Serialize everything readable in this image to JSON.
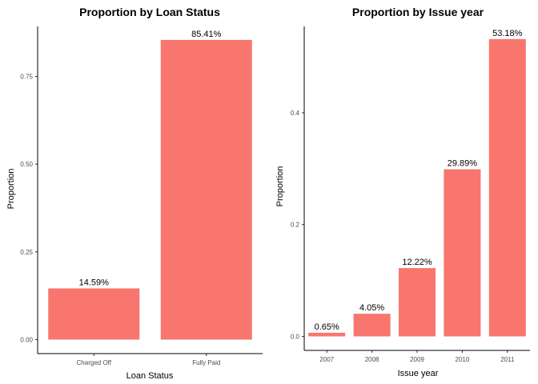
{
  "chart_data": [
    {
      "type": "bar",
      "title": "Proportion by Loan Status",
      "xlabel": "Loan Status",
      "ylabel": "Proportion",
      "categories": [
        "Charged Off",
        "Fully Paid"
      ],
      "values": [
        0.1459,
        0.8541
      ],
      "data_labels": [
        "14.59%",
        "85.41%"
      ],
      "ylim": [
        0,
        0.88
      ],
      "yticks": [
        0,
        0.25,
        0.5,
        0.75
      ],
      "ytick_labels": [
        "0.00",
        "0.25",
        "0.50",
        "0.75"
      ],
      "bar_color": "#F8766D",
      "grid": false
    },
    {
      "type": "bar",
      "title": "Proportion by Issue year",
      "xlabel": "Issue year",
      "ylabel": "Proportion",
      "categories": [
        "2007",
        "2008",
        "2009",
        "2010",
        "2011"
      ],
      "values": [
        0.0065,
        0.0405,
        0.1222,
        0.2989,
        0.5318
      ],
      "data_labels": [
        "0.65%",
        "4.05%",
        "12.22%",
        "29.89%",
        "53.18%"
      ],
      "ylim": [
        0,
        0.55
      ],
      "yticks": [
        0,
        0.2,
        0.4
      ],
      "ytick_labels": [
        "0.0",
        "0.2",
        "0.4"
      ],
      "bar_color": "#F8766D",
      "grid": false
    }
  ]
}
